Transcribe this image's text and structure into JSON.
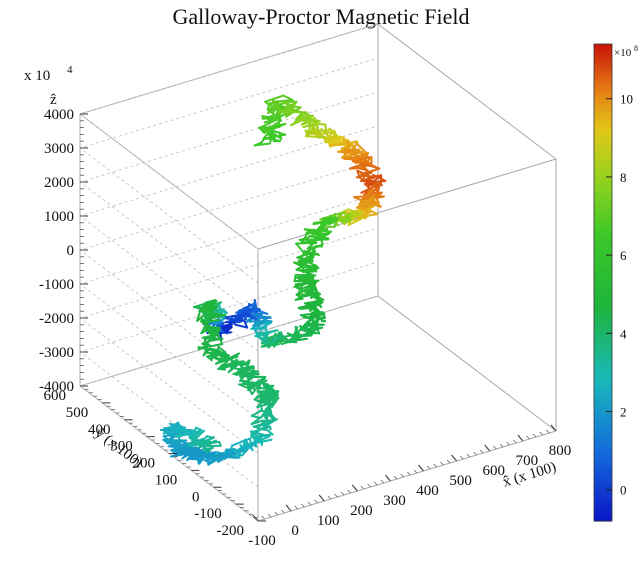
{
  "chart_data": {
    "type": "line3d",
    "title": "Galloway-Proctor Magnetic Field",
    "z_multiplier": "x 10",
    "z_exponent": "4",
    "xlabel": "x̂ (x 100)",
    "ylabel": "ŷ (x 100)",
    "zlabel": "ẑ",
    "xlim": [
      -100,
      800
    ],
    "ylim": [
      -200,
      600
    ],
    "zlim": [
      -4000,
      4000
    ],
    "x_ticks": [
      "-100",
      "0",
      "100",
      "200",
      "300",
      "400",
      "500",
      "600",
      "700",
      "800"
    ],
    "y_ticks": [
      "-200",
      "-100",
      "0",
      "100",
      "200",
      "300",
      "400",
      "500",
      "600"
    ],
    "z_ticks": [
      "-4000",
      "-3000",
      "-2000",
      "-1000",
      "0",
      "1000",
      "2000",
      "3000",
      "4000"
    ],
    "colorbar": {
      "min": -0.8,
      "max": 11.4,
      "multiplier": "×10",
      "exponent": "8",
      "ticks": [
        "0",
        "2",
        "4",
        "6",
        "8",
        "10"
      ],
      "tick_values": [
        0,
        2,
        4,
        6,
        8,
        10
      ],
      "colormap": "rainbow"
    },
    "trajectory_anchors": [
      {
        "x": 420,
        "y": 520,
        "z": 2000,
        "c": 6.4
      },
      {
        "x": 430,
        "y": 500,
        "z": 3300,
        "c": 7.0
      },
      {
        "x": 500,
        "y": 420,
        "z": 2600,
        "c": 8.3
      },
      {
        "x": 560,
        "y": 360,
        "z": 2200,
        "c": 9.8
      },
      {
        "x": 600,
        "y": 320,
        "z": 1300,
        "c": 10.8
      },
      {
        "x": 570,
        "y": 330,
        "z": 400,
        "c": 9.5
      },
      {
        "x": 480,
        "y": 380,
        "z": 200,
        "c": 6.5
      },
      {
        "x": 420,
        "y": 360,
        "z": -700,
        "c": 5.5
      },
      {
        "x": 410,
        "y": 340,
        "z": -1500,
        "c": 5.0
      },
      {
        "x": 430,
        "y": 320,
        "z": -2400,
        "c": 4.5
      },
      {
        "x": 330,
        "y": 380,
        "z": -2900,
        "c": 4.2
      },
      {
        "x": 300,
        "y": 420,
        "z": -2000,
        "c": 1.0
      },
      {
        "x": 230,
        "y": 460,
        "z": -2700,
        "c": -0.5
      },
      {
        "x": 200,
        "y": 470,
        "z": -1800,
        "c": 4.8
      },
      {
        "x": 200,
        "y": 450,
        "z": -3100,
        "c": 4.5
      },
      {
        "x": 260,
        "y": 400,
        "z": -3600,
        "c": 4.2
      },
      {
        "x": 300,
        "y": 340,
        "z": -4300,
        "c": 4.0
      },
      {
        "x": 250,
        "y": 320,
        "z": -5300,
        "c": 3.0
      },
      {
        "x": 160,
        "y": 360,
        "z": -5700,
        "c": 2.2
      },
      {
        "x": 80,
        "y": 400,
        "z": -5500,
        "c": 2.0
      },
      {
        "x": 60,
        "y": 420,
        "z": -4800,
        "c": 2.5
      },
      {
        "x": 140,
        "y": 360,
        "z": -5300,
        "c": 3.5
      }
    ]
  }
}
